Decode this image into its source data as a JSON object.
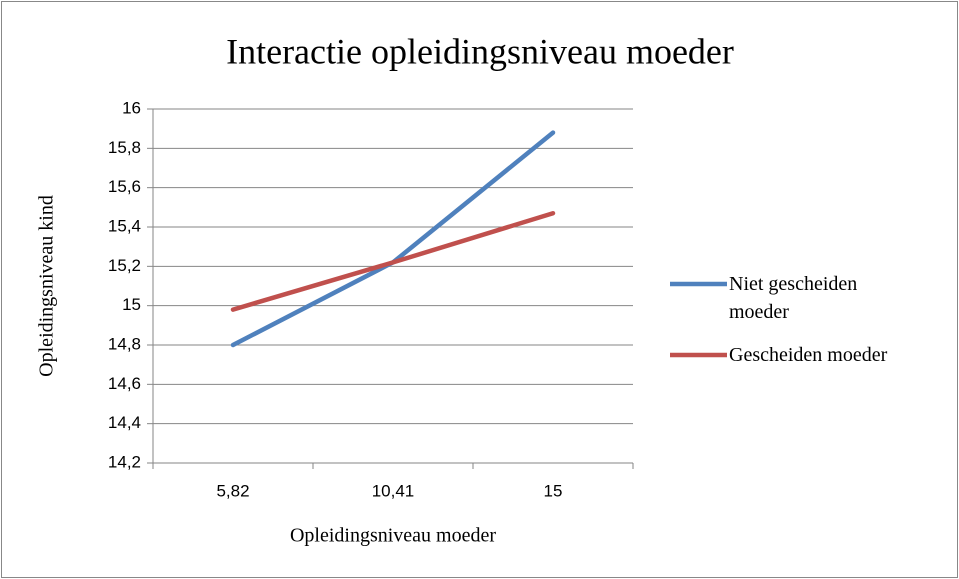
{
  "chart_data": {
    "type": "line",
    "title": "Interactie opleidingsniveau moeder",
    "x_label": "Opleidingsniveau moeder",
    "y_label": "Opleidingsniveau kind",
    "categories": [
      "5,82",
      "10,41",
      "15"
    ],
    "series": [
      {
        "name": "Niet gescheiden moeder",
        "color": "#4f81bd",
        "values": [
          14.8,
          15.22,
          15.88
        ]
      },
      {
        "name": "Gescheiden moeder",
        "color": "#c0504d",
        "values": [
          14.98,
          15.22,
          15.47
        ]
      }
    ],
    "ylim": [
      14.2,
      16
    ],
    "yticks": [
      {
        "value": 14.2,
        "label": "14,2"
      },
      {
        "value": 14.4,
        "label": "14,4"
      },
      {
        "value": 14.6,
        "label": "14,6"
      },
      {
        "value": 14.8,
        "label": "14,8"
      },
      15,
      {
        "value": 15.2,
        "label": "15,2"
      },
      {
        "value": 15.4,
        "label": "15,4"
      },
      {
        "value": 15.6,
        "label": "15,6"
      },
      {
        "value": 15.8,
        "label": "15,8"
      },
      16
    ],
    "grid": true,
    "legend": "right"
  }
}
